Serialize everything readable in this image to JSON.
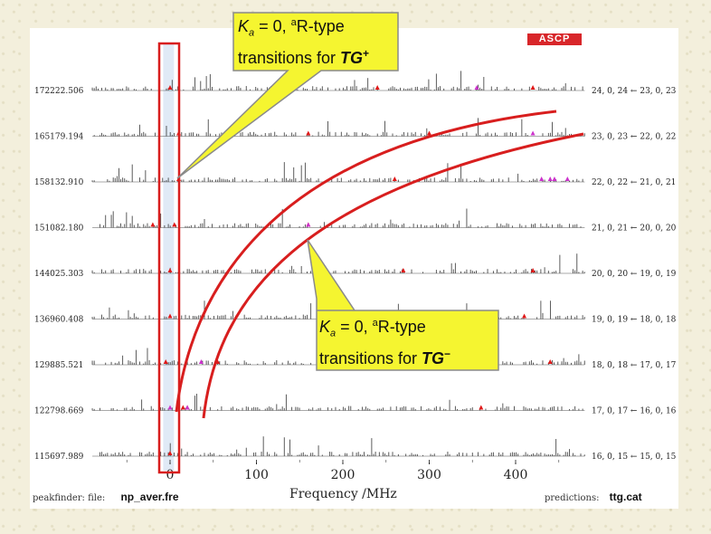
{
  "chart_data": {
    "type": "scatter",
    "xlabel": "Frequency /MHz",
    "xlim": [
      -90,
      480
    ],
    "x_ticks": [
      0,
      100,
      200,
      300,
      400
    ],
    "row_labels_left": [
      "172222.506",
      "165179.194",
      "158132.910",
      "151082.180",
      "144025.303",
      "136960.408",
      "129885.521",
      "122798.669",
      "115697.989"
    ],
    "row_labels_right": [
      "24, 0, 24 ← 23, 0, 23",
      "23, 0, 23 ← 22, 0, 22",
      "22, 0, 22 ← 21, 0, 21",
      "21, 0, 21 ← 20, 0, 20",
      "20, 0, 20 ← 19, 0, 19",
      "19, 0, 19 ← 18, 0, 18",
      "18, 0, 18 ← 17, 0, 17",
      "17, 0, 17 ← 16, 0, 16",
      "16, 0, 15 ← 15, 0, 15"
    ],
    "tg_plus_series": {
      "points": [
        [
          5,
          0
        ],
        [
          10,
          1
        ],
        [
          7,
          2
        ],
        [
          2,
          3
        ],
        [
          0,
          4
        ],
        [
          0,
          5
        ],
        [
          0,
          6
        ],
        [
          0,
          7
        ],
        [
          0,
          8
        ]
      ]
    },
    "tg_minus_series": {
      "points": [
        [
          440,
          1
        ],
        [
          420,
          2
        ],
        [
          160,
          3
        ],
        [
          360,
          4
        ],
        [
          200,
          5
        ],
        [
          80,
          6
        ],
        [
          36,
          7
        ],
        [
          20,
          8
        ]
      ]
    },
    "red_markers": [
      [
        0,
        0
      ],
      [
        240,
        0
      ],
      [
        420,
        0
      ],
      [
        10,
        1
      ],
      [
        160,
        1
      ],
      [
        300,
        1
      ],
      [
        10,
        2
      ],
      [
        260,
        2
      ],
      [
        5,
        3
      ],
      [
        -20,
        3
      ],
      [
        160,
        3
      ],
      [
        0,
        4
      ],
      [
        270,
        4
      ],
      [
        420,
        4
      ],
      [
        0,
        5
      ],
      [
        200,
        5
      ],
      [
        410,
        5
      ],
      [
        -5,
        6
      ],
      [
        55,
        6
      ],
      [
        440,
        6
      ],
      [
        20,
        7
      ],
      [
        15,
        7
      ],
      [
        360,
        7
      ],
      [
        0,
        8
      ]
    ],
    "magenta_markers": [
      [
        355,
        0
      ],
      [
        420,
        1
      ],
      [
        430,
        2
      ],
      [
        440,
        2
      ],
      [
        445,
        2
      ],
      [
        460,
        2
      ],
      [
        160,
        3
      ],
      [
        36,
        6
      ],
      [
        0,
        7
      ],
      [
        20,
        7
      ]
    ]
  },
  "callouts": {
    "tg_plus": {
      "ka": "K",
      "ka_sub": "a",
      "mid": " = 0, ",
      "sup": "a",
      "rtype": "R-type",
      "line2": "transitions for ",
      "tg": "TG",
      "tg_sup": "+"
    },
    "tg_minus": {
      "ka": "K",
      "ka_sub": "a",
      "mid": " = 0, ",
      "sup": "a",
      "rtype": "R-type",
      "line2": "transitions for ",
      "tg": "TG",
      "tg_sup": "−"
    }
  },
  "footer": {
    "left_label": "peakfinder: file:",
    "left_file": "np_aver.fre",
    "right_label": "predictions:",
    "right_file": "ttg.cat"
  },
  "logo_text": "ASCP",
  "colors": {
    "curve": "#d81e1e",
    "highlight_box": "#d81e1e",
    "callout_fill": "#f5f530",
    "callout_stroke": "#8a8a8a",
    "red_marker": "#e01818",
    "magenta_marker": "#cc33cc"
  }
}
